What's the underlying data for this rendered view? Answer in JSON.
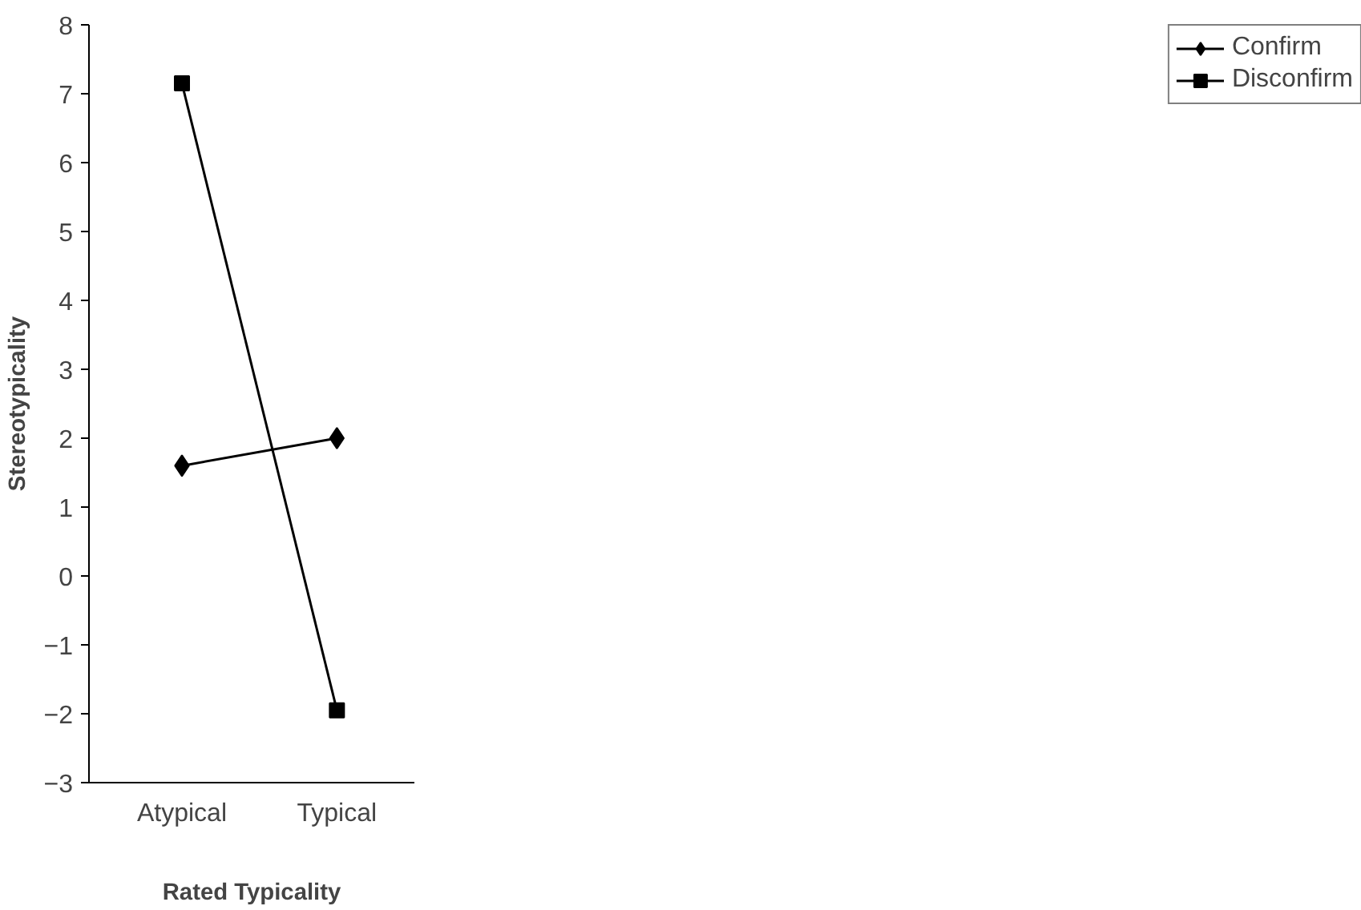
{
  "chart_data": {
    "type": "line",
    "xlabel": "Rated Typicality",
    "ylabel": "Stereotypicality",
    "categories": [
      "Atypical",
      "Typical"
    ],
    "series": [
      {
        "name": "Confirm",
        "color": "#000000",
        "values": [
          1.6,
          2.0
        ],
        "marker": "diamond"
      },
      {
        "name": "Disconfirm",
        "color": "#000000",
        "values": [
          7.15,
          -1.95
        ],
        "marker": "square"
      }
    ],
    "ylim": [
      -3,
      8
    ],
    "yticks": [
      -3,
      -2,
      -1,
      0,
      1,
      2,
      3,
      4,
      5,
      6,
      7,
      8
    ],
    "grid": false,
    "legend": "right",
    "line_style": "solid"
  }
}
